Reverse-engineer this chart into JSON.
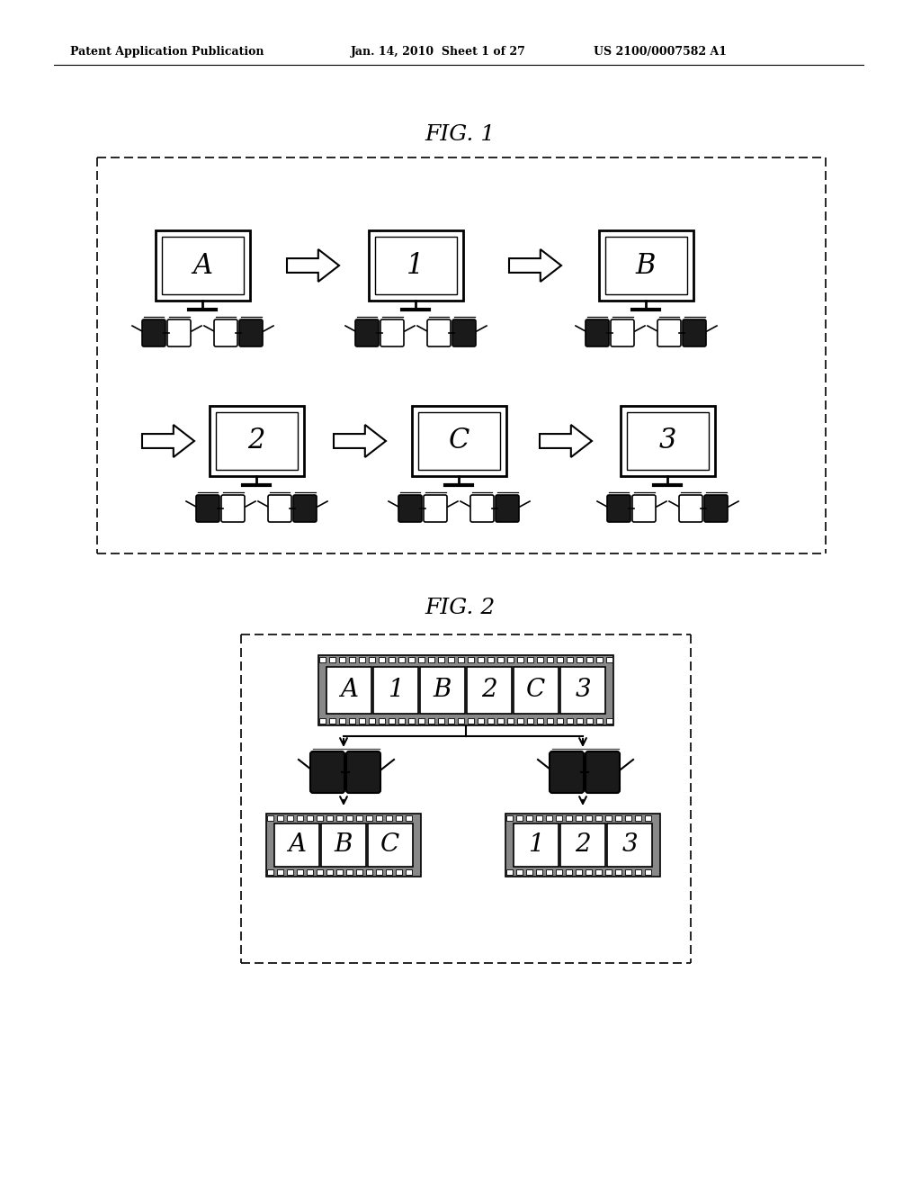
{
  "bg_color": "#ffffff",
  "header_left": "Patent Application Publication",
  "header_mid": "Jan. 14, 2010  Sheet 1 of 27",
  "header_right": "US 2100/0007582 A1",
  "fig1_title": "FIG. 1",
  "fig2_title": "FIG. 2"
}
